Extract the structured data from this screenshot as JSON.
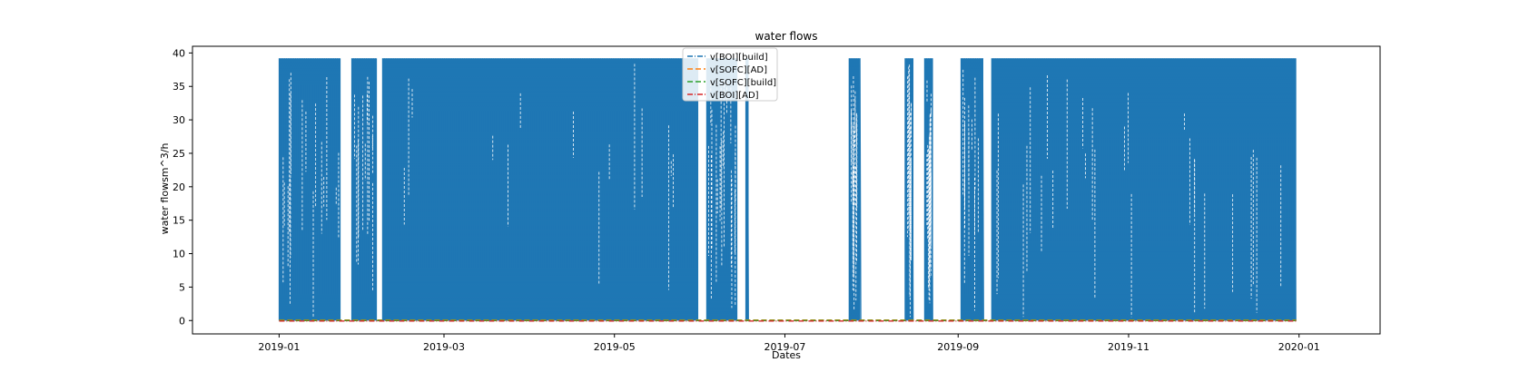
{
  "chart_data": {
    "type": "line",
    "title": "water flows",
    "xlabel": "Dates",
    "ylabel": "water flowsm^3/h",
    "xlim": [
      "2018-12-01",
      "2020-01-30"
    ],
    "ylim": [
      -2,
      41
    ],
    "x_ticks": [
      "2019-01",
      "2019-03",
      "2019-05",
      "2019-07",
      "2019-09",
      "2019-11",
      "2020-01"
    ],
    "y_ticks": [
      0,
      5,
      10,
      15,
      20,
      25,
      30,
      35,
      40
    ],
    "grid": false,
    "legend_location": "upper center",
    "series": [
      {
        "name": "v[BOI][build]",
        "color": "#1f77b4",
        "linestyle": "dashdot",
        "max_value": 39.2,
        "active_periods": [
          [
            "2019-01-01",
            "2019-01-23"
          ],
          [
            "2019-01-27",
            "2019-02-05"
          ],
          [
            "2019-02-07",
            "2019-05-31"
          ],
          [
            "2019-06-03",
            "2019-06-14"
          ],
          [
            "2019-06-17",
            "2019-06-18"
          ],
          [
            "2019-07-24",
            "2019-07-28"
          ],
          [
            "2019-08-13",
            "2019-08-16"
          ],
          [
            "2019-08-20",
            "2019-08-23"
          ],
          [
            "2019-09-02",
            "2019-09-10"
          ],
          [
            "2019-09-13",
            "2019-12-31"
          ]
        ]
      },
      {
        "name": "v[SOFC][AD]",
        "color": "#ff7f0e",
        "linestyle": "dashed",
        "constant_value": 0
      },
      {
        "name": "v[SOFC][build]",
        "color": "#2ca02c",
        "linestyle": "dashed",
        "constant_value": 0
      },
      {
        "name": "v[BOI][AD]",
        "color": "#d62728",
        "linestyle": "dashdot",
        "constant_value": 0
      }
    ]
  }
}
